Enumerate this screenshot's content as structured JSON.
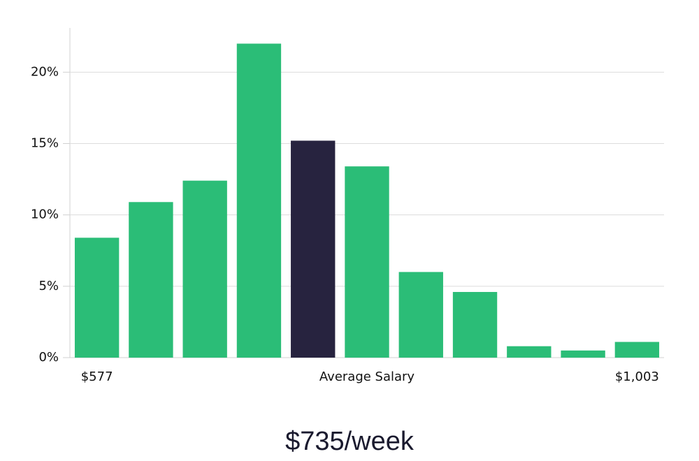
{
  "chart_data": {
    "type": "bar",
    "categories": [
      "$577",
      null,
      null,
      null,
      null,
      null,
      null,
      null,
      null,
      null,
      "$1,003"
    ],
    "x_label": "Average Salary",
    "values": [
      8.4,
      10.9,
      12.4,
      22.0,
      15.2,
      13.4,
      6.0,
      4.6,
      0.8,
      0.5,
      1.1
    ],
    "colors": [
      "#2bbd77",
      "#2bbd77",
      "#2bbd77",
      "#2bbd77",
      "#27233f",
      "#2bbd77",
      "#2bbd77",
      "#2bbd77",
      "#2bbd77",
      "#2bbd77",
      "#2bbd77"
    ],
    "ylim": [
      0,
      23.1
    ],
    "yticks": [
      {
        "value": 0,
        "label": "0%"
      },
      {
        "value": 5,
        "label": "5%"
      },
      {
        "value": 10,
        "label": "10%"
      },
      {
        "value": 15,
        "label": "15%"
      },
      {
        "value": 20,
        "label": "20%"
      }
    ],
    "grid": true,
    "annotation": "$735/week"
  }
}
